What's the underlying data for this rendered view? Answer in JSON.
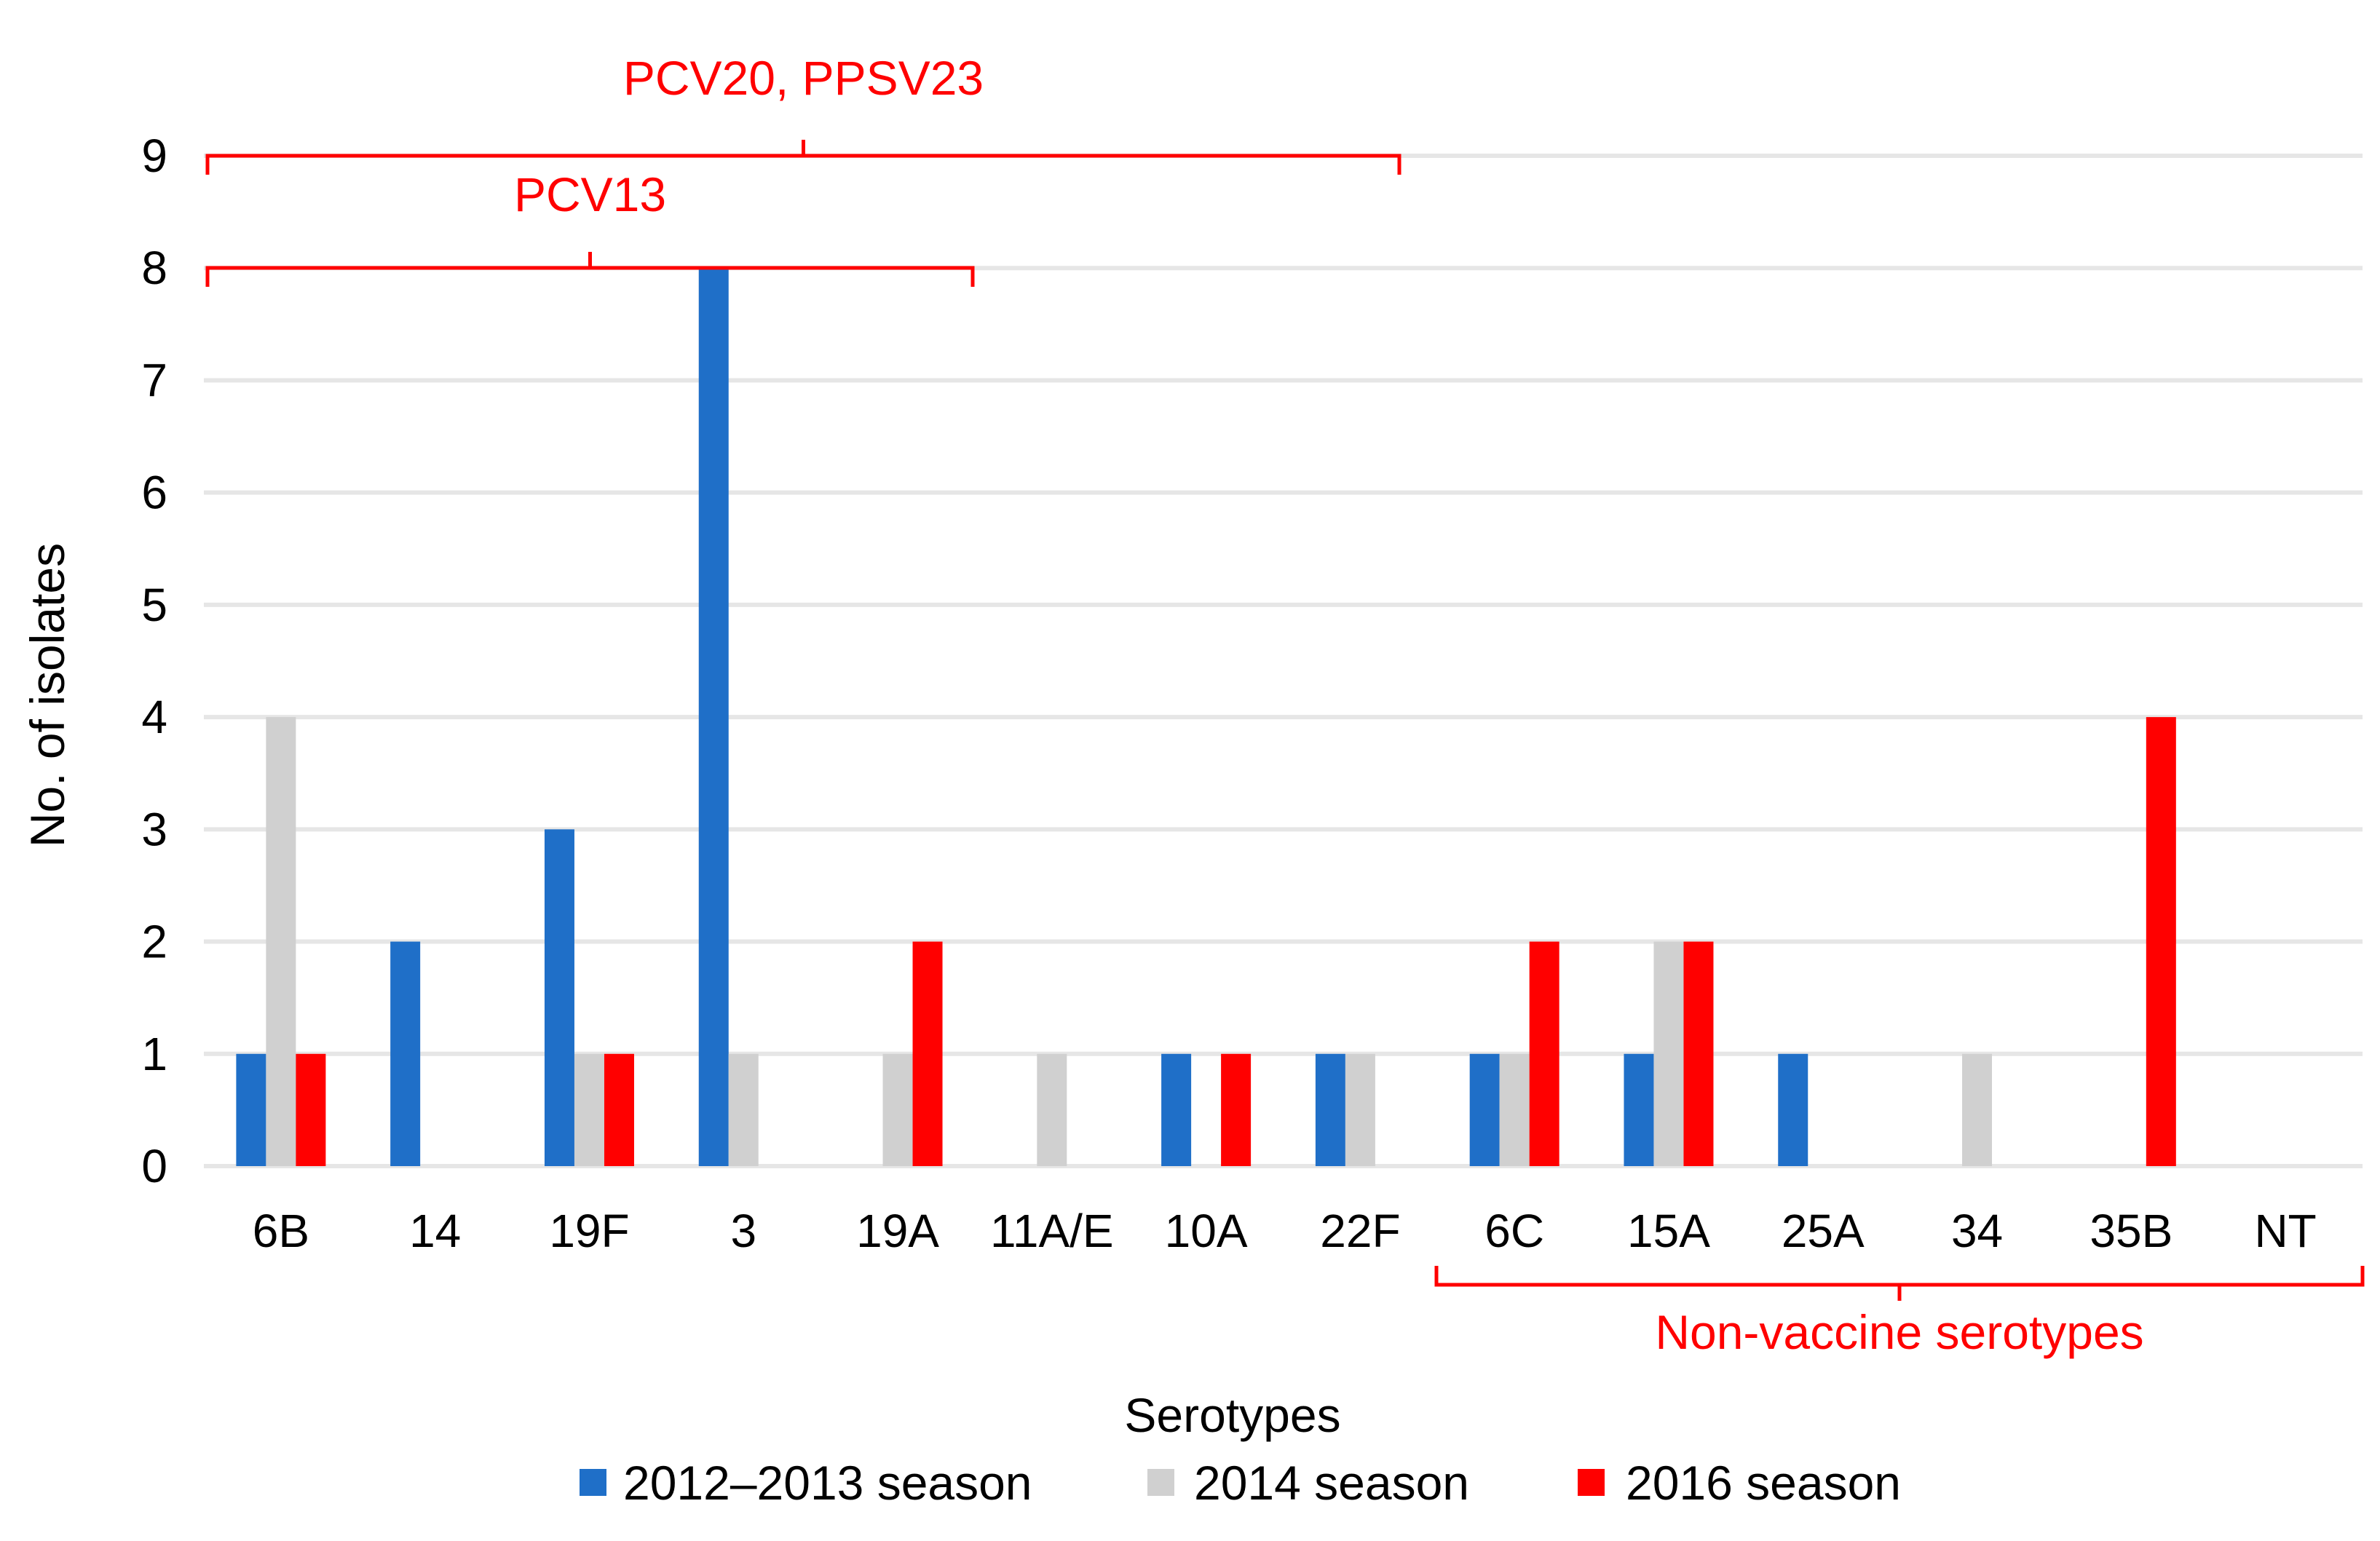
{
  "chart_data": {
    "type": "bar",
    "title": "",
    "xlabel": "Serotypes",
    "ylabel": "No. of isolates",
    "ylim": [
      0,
      9
    ],
    "yticks": [
      0,
      1,
      2,
      3,
      4,
      5,
      6,
      7,
      8,
      9
    ],
    "grid": true,
    "legend_position": "bottom",
    "categories": [
      "6B",
      "14",
      "19F",
      "3",
      "19A",
      "11A/E",
      "10A",
      "22F",
      "6C",
      "15A",
      "25A",
      "34",
      "35B",
      "NT"
    ],
    "series": [
      {
        "name": "2012–2013 season",
        "color": "#1f6fc8",
        "values": [
          1,
          2,
          3,
          8,
          0,
          0,
          1,
          1,
          1,
          1,
          1,
          0,
          0,
          0
        ]
      },
      {
        "name": "2014 season",
        "color": "#d0d0d0",
        "values": [
          4,
          0,
          1,
          1,
          1,
          1,
          0,
          1,
          1,
          2,
          0,
          1,
          0,
          0
        ]
      },
      {
        "name": "2016 season",
        "color": "#ff0000",
        "values": [
          1,
          0,
          1,
          0,
          2,
          0,
          1,
          0,
          2,
          2,
          0,
          0,
          4,
          0
        ]
      }
    ],
    "annotations": [
      {
        "label": "PCV20, PPSV23",
        "from": "6B",
        "to": "22F",
        "placement": "top",
        "color": "#ff0000"
      },
      {
        "label": "PCV13",
        "from": "6B",
        "to": "19A",
        "placement": "top",
        "color": "#ff0000"
      },
      {
        "label": "Non-vaccine serotypes",
        "from": "6C",
        "to": "NT",
        "placement": "bottom",
        "color": "#ff0000"
      }
    ]
  }
}
